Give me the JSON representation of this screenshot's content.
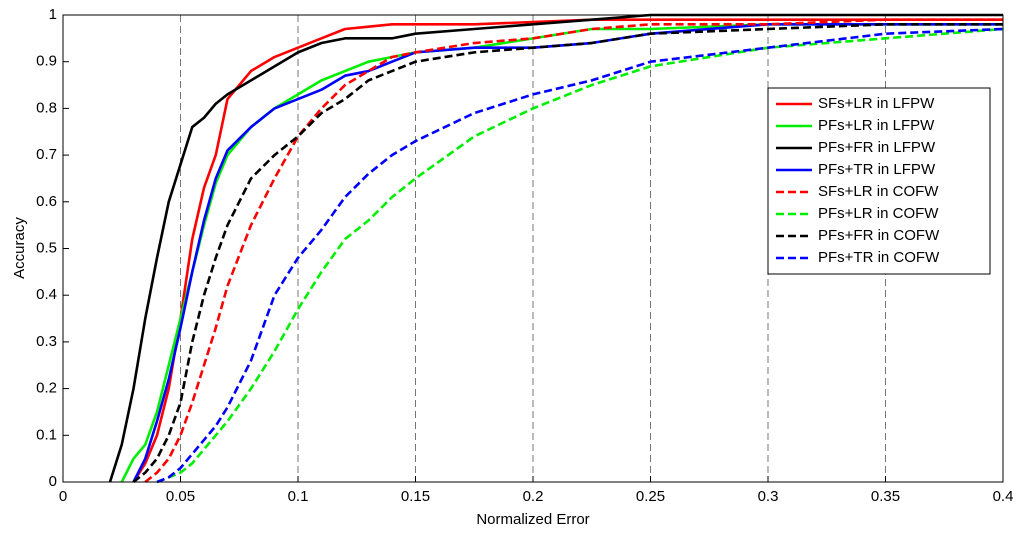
{
  "chart_data": {
    "type": "line",
    "x_label": "Normalized Error",
    "y_label": "Accuracy",
    "x": [
      0.02,
      0.025,
      0.03,
      0.035,
      0.04,
      0.045,
      0.05,
      0.055,
      0.06,
      0.065,
      0.07,
      0.08,
      0.09,
      0.1,
      0.11,
      0.12,
      0.13,
      0.14,
      0.15,
      0.175,
      0.2,
      0.225,
      0.25,
      0.3,
      0.35,
      0.4
    ],
    "series": [
      {
        "name": "SFs+LR in LFPW",
        "color": "#ff0000",
        "line_style": "solid",
        "values": [
          null,
          null,
          0,
          0.04,
          0.1,
          0.2,
          0.35,
          0.52,
          0.63,
          0.7,
          0.82,
          0.88,
          0.91,
          0.93,
          0.95,
          0.97,
          0.975,
          0.98,
          0.98,
          0.98,
          0.985,
          0.99,
          0.99,
          0.99,
          0.99,
          0.99
        ]
      },
      {
        "name": "PFs+LR in LFPW",
        "color": "#00ee00",
        "line_style": "solid",
        "values": [
          null,
          0,
          0.05,
          0.08,
          0.15,
          0.25,
          0.35,
          0.45,
          0.55,
          0.64,
          0.7,
          0.76,
          0.8,
          0.83,
          0.86,
          0.88,
          0.9,
          0.91,
          0.92,
          0.93,
          0.95,
          0.97,
          0.97,
          0.98,
          0.98,
          0.98
        ]
      },
      {
        "name": "PFs+FR in LFPW",
        "color": "#000000",
        "line_style": "solid",
        "values": [
          0,
          0.08,
          0.2,
          0.35,
          0.48,
          0.6,
          0.68,
          0.76,
          0.78,
          0.81,
          0.83,
          0.86,
          0.89,
          0.92,
          0.94,
          0.95,
          0.95,
          0.95,
          0.96,
          0.97,
          0.98,
          0.99,
          1,
          1,
          1,
          1
        ]
      },
      {
        "name": "PFs+TR in LFPW",
        "color": "#0000ff",
        "line_style": "solid",
        "values": [
          null,
          null,
          0,
          0.05,
          0.13,
          0.22,
          0.33,
          0.45,
          0.56,
          0.65,
          0.71,
          0.76,
          0.8,
          0.82,
          0.84,
          0.87,
          0.88,
          0.9,
          0.92,
          0.93,
          0.93,
          0.94,
          0.96,
          0.98,
          0.98,
          0.98
        ]
      },
      {
        "name": "SFs+LR in COFW",
        "color": "#ff0000",
        "line_style": "dashed",
        "values": [
          null,
          null,
          null,
          0,
          0.02,
          0.05,
          0.1,
          0.17,
          0.25,
          0.33,
          0.42,
          0.55,
          0.65,
          0.74,
          0.8,
          0.85,
          0.88,
          0.91,
          0.92,
          0.94,
          0.95,
          0.97,
          0.98,
          0.98,
          0.99,
          0.99
        ]
      },
      {
        "name": "PFs+LR in COFW",
        "color": "#00ee00",
        "line_style": "dashed",
        "values": [
          null,
          null,
          null,
          null,
          0,
          0.01,
          0.02,
          0.04,
          0.07,
          0.1,
          0.13,
          0.2,
          0.28,
          0.37,
          0.45,
          0.52,
          0.56,
          0.61,
          0.65,
          0.74,
          0.8,
          0.85,
          0.89,
          0.93,
          0.95,
          0.97
        ]
      },
      {
        "name": "PFs+FR in COFW",
        "color": "#000000",
        "line_style": "dashed",
        "values": [
          null,
          null,
          0,
          0.02,
          0.05,
          0.1,
          0.17,
          0.3,
          0.4,
          0.48,
          0.55,
          0.65,
          0.7,
          0.74,
          0.79,
          0.82,
          0.86,
          0.88,
          0.9,
          0.92,
          0.93,
          0.94,
          0.96,
          0.97,
          0.98,
          0.98
        ]
      },
      {
        "name": "PFs+TR in COFW",
        "color": "#0000ff",
        "line_style": "dashed",
        "values": [
          null,
          null,
          null,
          null,
          0,
          0.01,
          0.03,
          0.06,
          0.09,
          0.12,
          0.16,
          0.26,
          0.4,
          0.48,
          0.54,
          0.61,
          0.66,
          0.7,
          0.73,
          0.79,
          0.83,
          0.86,
          0.9,
          0.93,
          0.96,
          0.97
        ]
      }
    ],
    "xlim": [
      0,
      0.4
    ],
    "ylim": [
      0,
      1
    ],
    "xticks": [
      0,
      0.05,
      0.1,
      0.15,
      0.2,
      0.25,
      0.3,
      0.35,
      0.4
    ],
    "yticks": [
      0,
      0.1,
      0.2,
      0.3,
      0.4,
      0.5,
      0.6,
      0.7,
      0.8,
      0.9,
      1
    ],
    "x_grid": true,
    "y_grid": false,
    "legend": "upper right"
  }
}
